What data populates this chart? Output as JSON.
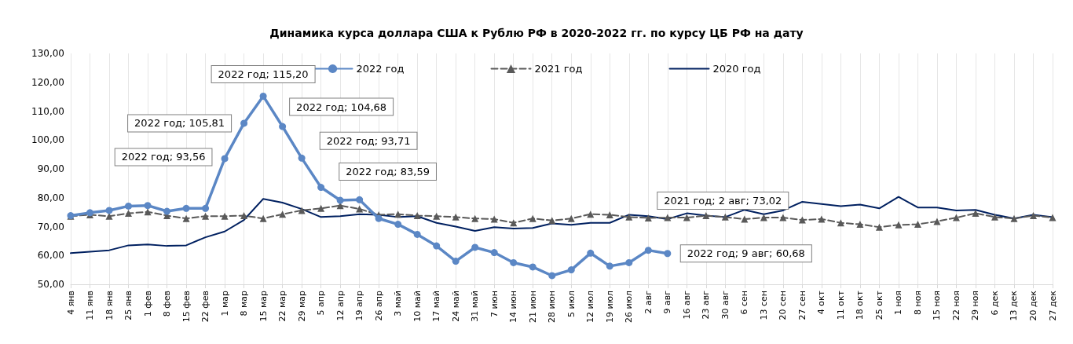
{
  "chart_data": {
    "type": "line",
    "title": "Динамика курса доллара США к Рублю РФ в 2020-2022 гг. по курсу ЦБ РФ на дату",
    "categories": [
      "4 янв",
      "11 янв",
      "18 янв",
      "25 янв",
      "1 фев",
      "8 фев",
      "15 фев",
      "22 фев",
      "1 мар",
      "8 мар",
      "15 мар",
      "22 мар",
      "29 мар",
      "5 апр",
      "12 апр",
      "19 апр",
      "26 апр",
      "3 май",
      "10 май",
      "17 май",
      "24 май",
      "31 май",
      "7 июн",
      "14 июн",
      "21 июн",
      "28 июн",
      "5 июл",
      "12 июл",
      "19 июл",
      "26 июл",
      "2 авг",
      "9 авг",
      "16 авг",
      "23 авг",
      "30 авг",
      "6 сен",
      "13 сен",
      "20 сен",
      "27 сен",
      "4 окт",
      "11 окт",
      "18 окт",
      "25 окт",
      "1 ноя",
      "8 ноя",
      "15 ноя",
      "22 ноя",
      "29 ноя",
      "6 дек",
      "13 дек",
      "20 дек",
      "27 дек"
    ],
    "series": [
      {
        "name": "2022 год",
        "color": "#5b87c5",
        "marker": "circle",
        "line_style": "solid",
        "values": [
          73.8,
          74.8,
          75.6,
          77.1,
          77.3,
          75.3,
          76.3,
          76.3,
          93.56,
          105.81,
          115.2,
          104.68,
          93.71,
          83.59,
          79.1,
          79.3,
          72.8,
          70.8,
          67.3,
          63.3,
          58.0,
          62.8,
          61.0,
          57.5,
          56.0,
          53.0,
          55.0,
          60.8,
          56.3,
          57.5,
          61.8,
          60.68,
          null,
          null,
          null,
          null,
          null,
          null,
          null,
          null,
          null,
          null,
          null,
          null,
          null,
          null,
          null,
          null,
          null,
          null,
          null,
          null
        ]
      },
      {
        "name": "2021 год",
        "color": "#595959",
        "marker": "triangle",
        "line_style": "dashed",
        "values": [
          73.6,
          74.1,
          73.6,
          74.6,
          75.1,
          73.8,
          72.8,
          73.6,
          73.6,
          73.8,
          72.8,
          74.3,
          75.6,
          76.3,
          77.3,
          76.1,
          74.1,
          74.3,
          73.8,
          73.6,
          73.3,
          72.8,
          72.6,
          71.3,
          72.8,
          72.1,
          72.8,
          74.3,
          74.1,
          73.3,
          73.02,
          73.1,
          73.1,
          73.8,
          73.3,
          72.6,
          73.1,
          73.1,
          72.3,
          72.6,
          71.3,
          70.8,
          69.8,
          70.6,
          70.8,
          71.8,
          73.1,
          74.6,
          73.3,
          72.8,
          73.8,
          73.1
        ]
      },
      {
        "name": "2020 год",
        "color": "#002060",
        "marker": "none",
        "line_style": "solid",
        "values": [
          60.8,
          61.3,
          61.8,
          63.5,
          63.8,
          63.3,
          63.5,
          66.3,
          68.3,
          72.3,
          79.6,
          78.3,
          76.1,
          73.3,
          73.6,
          74.3,
          74.1,
          73.3,
          73.6,
          71.3,
          70.0,
          68.5,
          69.8,
          69.3,
          69.5,
          71.1,
          70.6,
          71.3,
          71.3,
          74.1,
          73.6,
          72.6,
          74.6,
          73.8,
          73.3,
          75.8,
          74.3,
          75.6,
          78.6,
          77.8,
          77.1,
          77.6,
          76.3,
          80.3,
          76.6,
          76.6,
          75.6,
          75.8,
          74.1,
          72.8,
          74.1,
          73.3
        ]
      }
    ],
    "ylim": [
      50,
      130
    ],
    "yticks": [
      {
        "value": 50,
        "label": "50,00"
      },
      {
        "value": 60,
        "label": "60,00"
      },
      {
        "value": 70,
        "label": "70,00"
      },
      {
        "value": 80,
        "label": "80,00"
      },
      {
        "value": 90,
        "label": "90,00"
      },
      {
        "value": 100,
        "label": "100,00"
      },
      {
        "value": 110,
        "label": "110,00"
      },
      {
        "value": 120,
        "label": "120,00"
      },
      {
        "value": 130,
        "label": "130,00"
      }
    ],
    "grid": "x",
    "legend": "top",
    "annotations": [
      {
        "text": "2022 год; 93,56",
        "x": "1 мар",
        "y": 93.56
      },
      {
        "text": "2022 год; 105,81",
        "x": "8 мар",
        "y": 105.81
      },
      {
        "text": "2022 год; 115,20",
        "x": "15 мар",
        "y": 115.2
      },
      {
        "text": "2022 год; 104,68",
        "x": "22 мар",
        "y": 104.68
      },
      {
        "text": "2022 год; 93,71",
        "x": "29 мар",
        "y": 93.71
      },
      {
        "text": "2022 год; 83,59",
        "x": "5 апр",
        "y": 83.59
      },
      {
        "text": "2021 год; 2 авг; 73,02",
        "x": "2 авг",
        "y": 73.02
      },
      {
        "text": "2022 год; 9 авг; 60,68",
        "x": "9 авг",
        "y": 60.68
      }
    ]
  }
}
